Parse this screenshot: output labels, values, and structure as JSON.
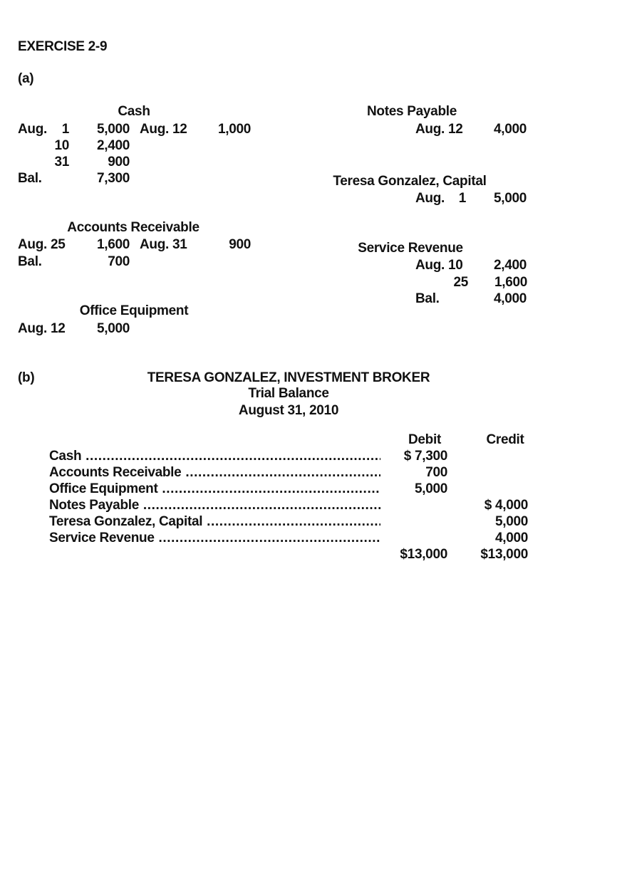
{
  "exercise_title": "EXERCISE 2-9",
  "part_a_label": "(a)",
  "part_b_label": "(b)",
  "t_accounts": {
    "cash": {
      "title": "Cash",
      "debits": [
        {
          "month": "Aug.",
          "day": "1",
          "amount": "5,000"
        },
        {
          "day": "10",
          "amount": "2,400"
        },
        {
          "day": "31",
          "amount": "900"
        }
      ],
      "credits": [
        {
          "date": "Aug. 12",
          "amount": "1,000"
        }
      ],
      "balance": {
        "label": "Bal.",
        "amount": "7,300"
      }
    },
    "accounts_receivable": {
      "title": "Accounts Receivable",
      "debits": [
        {
          "date": "Aug. 25",
          "amount": "1,600"
        }
      ],
      "credits": [
        {
          "date": "Aug. 31",
          "amount": "900"
        }
      ],
      "balance": {
        "label": "Bal.",
        "amount": "700"
      }
    },
    "office_equipment": {
      "title": "Office Equipment",
      "debits": [
        {
          "date": "Aug. 12",
          "amount": "5,000"
        }
      ]
    },
    "notes_payable": {
      "title": "Notes Payable",
      "credits": [
        {
          "date": "Aug. 12",
          "amount": "4,000"
        }
      ]
    },
    "capital": {
      "title": "Teresa Gonzalez, Capital",
      "credits": [
        {
          "month": "Aug.",
          "day": "1",
          "amount": "5,000"
        }
      ]
    },
    "service_revenue": {
      "title": "Service Revenue",
      "credits": [
        {
          "date": "Aug. 10",
          "amount": "2,400"
        },
        {
          "day": "25",
          "amount": "1,600"
        }
      ],
      "balance": {
        "label": "Bal.",
        "amount": "4,000"
      }
    }
  },
  "trial_balance": {
    "company": "TERESA GONZALEZ, INVESTMENT BROKER",
    "title": "Trial Balance",
    "date": "August 31, 2010",
    "headers": {
      "debit": "Debit",
      "credit": "Credit"
    },
    "rows": [
      {
        "account": "Cash",
        "debit": "$ 7,300",
        "credit": ""
      },
      {
        "account": "Accounts Receivable",
        "debit": "700",
        "credit": ""
      },
      {
        "account": "Office Equipment",
        "debit": "5,000",
        "credit": ""
      },
      {
        "account": "Notes Payable",
        "debit": "",
        "credit": "$ 4,000"
      },
      {
        "account": "Teresa Gonzalez, Capital",
        "debit": "",
        "credit": "5,000"
      },
      {
        "account": "Service Revenue",
        "debit": "",
        "credit": "4,000"
      }
    ],
    "totals": {
      "debit": "$13,000",
      "credit": "$13,000"
    }
  }
}
